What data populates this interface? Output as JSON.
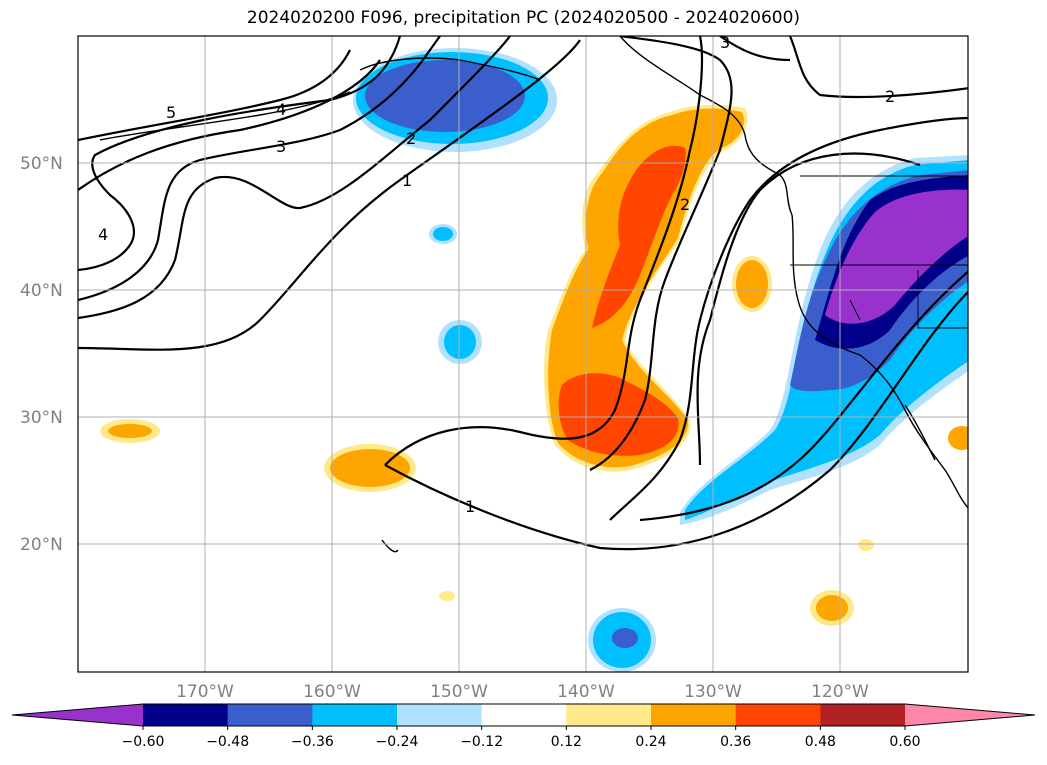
{
  "title": "2024020200 F096, precipitation PC (2024020500 - 2024020600)",
  "map": {
    "latitude_labels": [
      "50°N",
      "40°N",
      "30°N",
      "20°N"
    ],
    "longitude_labels": [
      "170°W",
      "160°W",
      "150°W",
      "140°W",
      "130°W",
      "120°W"
    ],
    "contour_labels": [
      "5",
      "4",
      "3",
      "2",
      "1",
      "2",
      "3",
      "2",
      "1",
      "4"
    ],
    "grid": true
  },
  "colorbar": {
    "tick_labels": [
      "−0.60",
      "−0.48",
      "−0.36",
      "−0.24",
      "−0.12",
      "0.12",
      "0.24",
      "0.36",
      "0.48",
      "0.60"
    ],
    "colors": [
      "#9932cc",
      "#00008b",
      "#3a5fcd",
      "#00bfff",
      "#b0e2ff",
      "#ffffff",
      "#ffe98a",
      "#ffa500",
      "#ff4500",
      "#b22222",
      "#ff88aa"
    ],
    "extend": "both"
  },
  "palette": {
    "orange": "#ffa500",
    "orange_red": "#ff4500",
    "light_yellow": "#ffe98a",
    "deep_sky_blue": "#00bfff",
    "light_blue": "#b0e2ff",
    "royal_blue": "#3a5fcd",
    "navy": "#00008b",
    "purple": "#9932cc",
    "grid": "#b0b0b0"
  }
}
